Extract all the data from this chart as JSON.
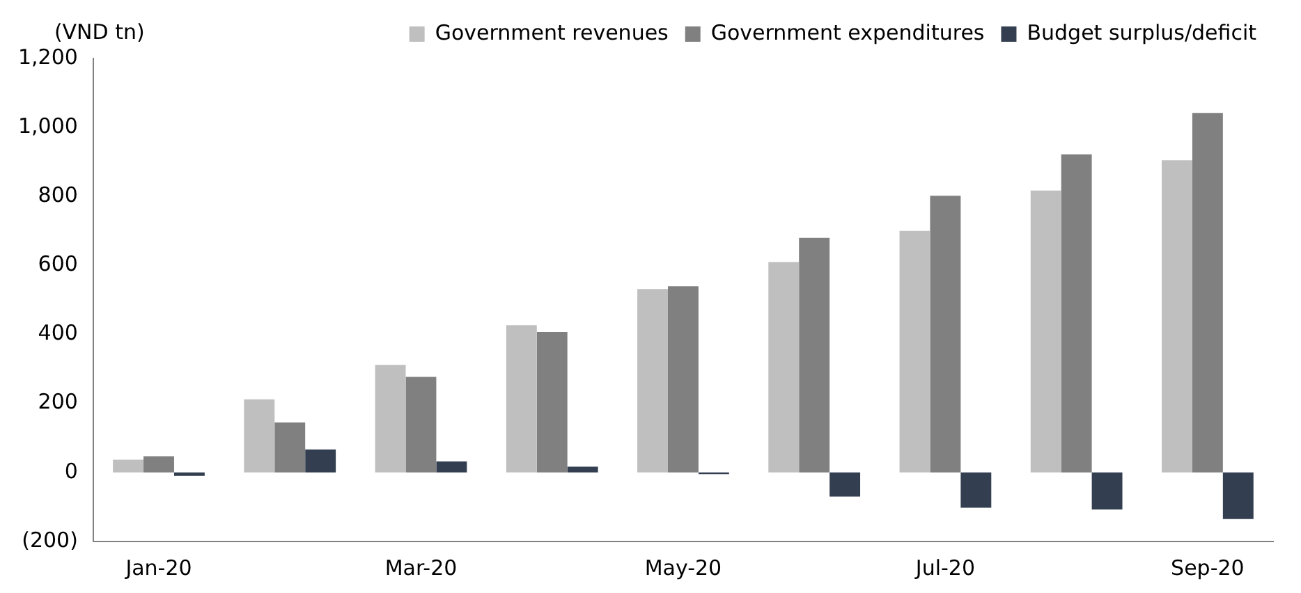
{
  "chart_data": {
    "type": "bar",
    "ylabel": "(VND tn)",
    "categories": [
      "Jan-20",
      null,
      "Mar-20",
      null,
      "May-20",
      null,
      "Jul-20",
      null,
      "Sep-20"
    ],
    "series": [
      {
        "name": "Government revenues",
        "color": "#bfbfbf",
        "values": [
          37,
          212,
          312,
          427,
          532,
          610,
          700,
          817,
          905
        ]
      },
      {
        "name": "Government expenditures",
        "color": "#808080",
        "values": [
          47,
          145,
          277,
          407,
          540,
          680,
          802,
          922,
          1042
        ]
      },
      {
        "name": "Budget surplus/deficit",
        "color": "#333f50",
        "values": [
          -10,
          67,
          32,
          17,
          -5,
          -70,
          -102,
          -107,
          -135
        ]
      }
    ],
    "ylim": [
      -200,
      1200
    ],
    "yticks": [
      {
        "value": -200,
        "label": "(200)"
      },
      0,
      200,
      400,
      600,
      800,
      {
        "value": 1000,
        "label": "1,000"
      },
      {
        "value": 1200,
        "label": "1,200"
      }
    ],
    "grid": false,
    "legend": "top"
  }
}
